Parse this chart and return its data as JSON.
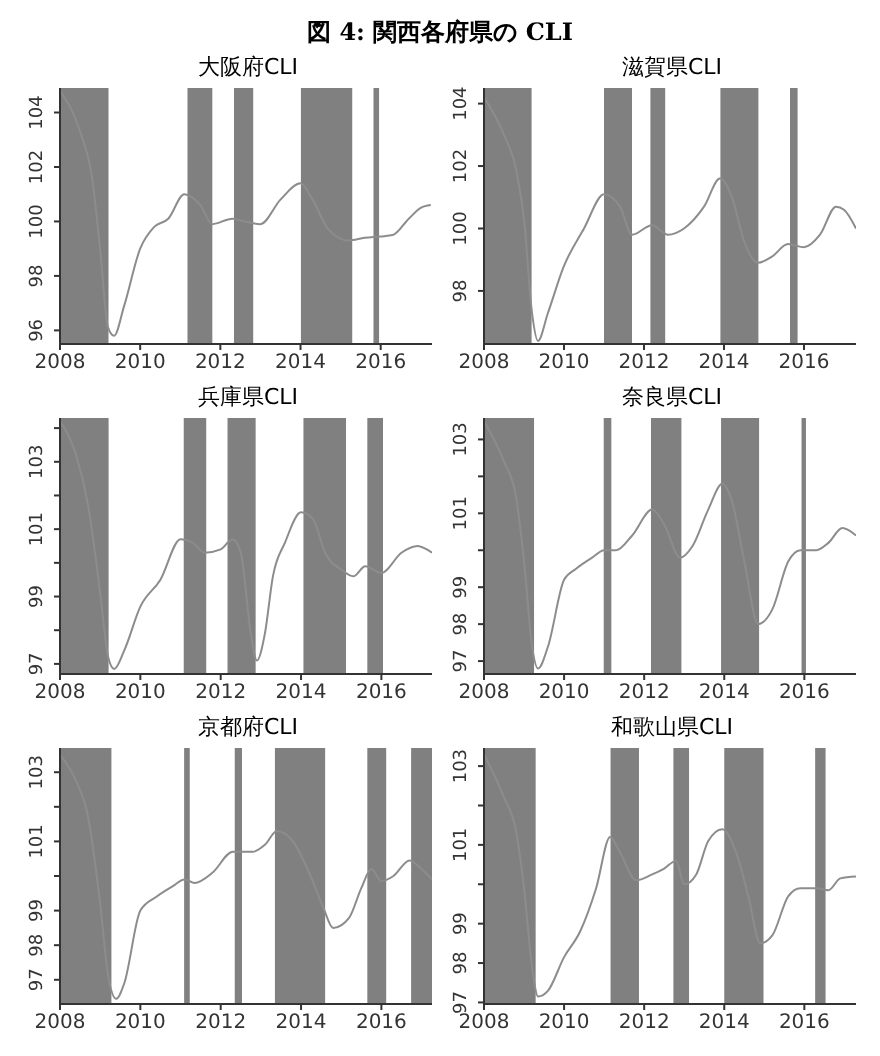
{
  "chart_data": [
    {
      "type": "line",
      "title": "大阪府CLI",
      "annotations": [
        "図 4: 関西各府県の CLI"
      ],
      "marker": "none",
      "color": "#8c8c8c",
      "x": [
        2008,
        2008.5,
        2008.8,
        2009.0,
        2009.2,
        2009.35,
        2009.6,
        2010,
        2010.35,
        2010.7,
        2011.1,
        2011.5,
        2011.8,
        2012.3,
        2012.6,
        2013,
        2013.5,
        2014,
        2014.3,
        2014.7,
        2015.2,
        2015.6,
        2016,
        2016.3,
        2016.7,
        2017,
        2017.25
      ],
      "values": [
        104.8,
        103.3,
        101.6,
        99.0,
        96.1,
        95.8,
        96.9,
        99.0,
        99.8,
        100.1,
        101.0,
        100.6,
        99.9,
        100.1,
        100.0,
        99.9,
        100.8,
        101.4,
        100.8,
        99.7,
        99.3,
        99.4,
        99.45,
        99.5,
        100.1,
        100.5,
        100.6
      ],
      "xlim": [
        2008,
        2017.28
      ],
      "xticks": [
        2008,
        2010,
        2012,
        2014,
        2016
      ],
      "ylim": [
        95.5,
        104.9
      ],
      "yticks": [
        96,
        98,
        100,
        102,
        104
      ],
      "bands": [
        {
          "axis": "x",
          "from": 2008,
          "to": 2009.21,
          "color": "#808080"
        },
        {
          "axis": "x",
          "from": 2011.18,
          "to": 2011.8,
          "color": "#808080"
        },
        {
          "axis": "x",
          "from": 2012.34,
          "to": 2012.82,
          "color": "#808080"
        },
        {
          "axis": "x",
          "from": 2014.01,
          "to": 2015.29,
          "color": "#808080"
        },
        {
          "axis": "x",
          "from": 2015.82,
          "to": 2015.96,
          "color": "#808080"
        }
      ]
    },
    {
      "type": "line",
      "title": "滋賀県CLI",
      "marker": "none",
      "color": "#8c8c8c",
      "x": [
        2008,
        2008.5,
        2008.8,
        2009.0,
        2009.2,
        2009.35,
        2009.6,
        2010,
        2010.5,
        2011,
        2011.4,
        2011.7,
        2012.2,
        2012.6,
        2013,
        2013.5,
        2013.9,
        2014.2,
        2014.5,
        2014.85,
        2015.2,
        2015.6,
        2016,
        2016.4,
        2016.8,
        2017,
        2017.3
      ],
      "values": [
        104.2,
        103.0,
        101.9,
        100.3,
        97.3,
        96.4,
        97.3,
        98.8,
        100.0,
        101.1,
        100.7,
        99.8,
        100.1,
        99.8,
        100.0,
        100.7,
        101.6,
        101.0,
        99.6,
        98.9,
        99.1,
        99.5,
        99.4,
        99.8,
        100.7,
        100.6,
        100.0
      ],
      "xlim": [
        2008,
        2017.3
      ],
      "xticks": [
        2008,
        2010,
        2012,
        2014,
        2016
      ],
      "ylim": [
        96.3,
        104.5
      ],
      "yticks": [
        98,
        100,
        102,
        104
      ],
      "bands": [
        {
          "axis": "x",
          "from": 2008,
          "to": 2009.19,
          "color": "#808080"
        },
        {
          "axis": "x",
          "from": 2011.0,
          "to": 2011.7,
          "color": "#808080"
        },
        {
          "axis": "x",
          "from": 2012.16,
          "to": 2012.53,
          "color": "#808080"
        },
        {
          "axis": "x",
          "from": 2013.91,
          "to": 2014.86,
          "color": "#808080"
        },
        {
          "axis": "x",
          "from": 2015.65,
          "to": 2015.84,
          "color": "#808080"
        }
      ]
    },
    {
      "type": "line",
      "title": "兵庫県CLI",
      "marker": "none",
      "color": "#8c8c8c",
      "x": [
        2008,
        2008.4,
        2008.7,
        2009.0,
        2009.2,
        2009.35,
        2009.6,
        2010,
        2010.5,
        2011,
        2011.3,
        2011.6,
        2012,
        2012.3,
        2012.5,
        2012.75,
        2012.9,
        2013.1,
        2013.3,
        2013.6,
        2014,
        2014.3,
        2014.6,
        2015,
        2015.3,
        2015.6,
        2016,
        2016.5,
        2016.9,
        2017.26
      ],
      "values": [
        104.2,
        103.2,
        101.7,
        99.1,
        97.2,
        96.85,
        97.4,
        98.7,
        99.5,
        100.7,
        100.6,
        100.3,
        100.4,
        100.7,
        100.3,
        97.9,
        97.1,
        97.9,
        99.6,
        100.6,
        101.5,
        101.3,
        100.3,
        99.8,
        99.6,
        99.9,
        99.7,
        100.3,
        100.5,
        100.3
      ],
      "xlim": [
        2008,
        2017.26
      ],
      "xticks": [
        2008,
        2010,
        2012,
        2014,
        2016
      ],
      "ylim": [
        96.7,
        104.3
      ],
      "yticks": [
        97,
        {
          "value": 98,
          "label": null
        },
        99,
        {
          "value": 100,
          "label": null
        },
        101,
        {
          "value": 102,
          "label": null
        },
        103,
        {
          "value": 104,
          "label": null
        }
      ],
      "bands": [
        {
          "axis": "x",
          "from": 2008,
          "to": 2009.21,
          "color": "#808080"
        },
        {
          "axis": "x",
          "from": 2011.08,
          "to": 2011.64,
          "color": "#808080"
        },
        {
          "axis": "x",
          "from": 2012.17,
          "to": 2012.87,
          "color": "#808080"
        },
        {
          "axis": "x",
          "from": 2014.06,
          "to": 2015.12,
          "color": "#808080"
        },
        {
          "axis": "x",
          "from": 2015.65,
          "to": 2016.04,
          "color": "#808080"
        }
      ]
    },
    {
      "type": "line",
      "title": "奈良県CLI",
      "marker": "none",
      "color": "#8c8c8c",
      "x": [
        2008,
        2008.5,
        2008.8,
        2009.0,
        2009.2,
        2009.35,
        2009.6,
        2010,
        2010.3,
        2010.7,
        2011,
        2011.3,
        2011.7,
        2012.2,
        2012.5,
        2012.9,
        2013.2,
        2013.6,
        2013.95,
        2014.2,
        2014.5,
        2014.85,
        2015.2,
        2015.6,
        2015.9,
        2016.3,
        2016.6,
        2016.95,
        2017.29
      ],
      "values": [
        103.5,
        102.4,
        101.45,
        99.7,
        97.4,
        96.8,
        97.4,
        99.2,
        99.5,
        99.8,
        100.0,
        100.0,
        100.4,
        101.1,
        100.7,
        99.8,
        100.1,
        101.1,
        101.8,
        101.3,
        99.7,
        98.0,
        98.4,
        99.7,
        100.0,
        100.0,
        100.2,
        100.6,
        100.4
      ],
      "xlim": [
        2008,
        2017.29
      ],
      "xticks": [
        2008,
        2010,
        2012,
        2014,
        2016
      ],
      "ylim": [
        96.65,
        103.58
      ],
      "yticks": [
        97,
        98,
        99,
        {
          "value": 100,
          "label": null
        },
        101,
        {
          "value": 102,
          "label": null
        },
        103
      ],
      "bands": [
        {
          "axis": "x",
          "from": 2008,
          "to": 2009.25,
          "color": "#808080"
        },
        {
          "axis": "x",
          "from": 2010.99,
          "to": 2011.18,
          "color": "#808080"
        },
        {
          "axis": "x",
          "from": 2012.17,
          "to": 2012.93,
          "color": "#808080"
        },
        {
          "axis": "x",
          "from": 2013.92,
          "to": 2014.87,
          "color": "#808080"
        },
        {
          "axis": "x",
          "from": 2015.93,
          "to": 2016.04,
          "color": "#808080"
        }
      ]
    },
    {
      "type": "line",
      "title": "京都府CLI",
      "marker": "none",
      "color": "#8c8c8c",
      "x": [
        2008,
        2008.4,
        2008.7,
        2009,
        2009.2,
        2009.4,
        2009.6,
        2010,
        2010.4,
        2010.8,
        2011.1,
        2011.35,
        2011.8,
        2012.3,
        2012.8,
        2013.1,
        2013.4,
        2013.8,
        2014.2,
        2014.55,
        2014.8,
        2015.2,
        2015.5,
        2015.75,
        2016,
        2016.3,
        2016.7,
        2017,
        2017.26
      ],
      "values": [
        103.5,
        102.75,
        101.7,
        99.2,
        97.1,
        96.45,
        96.9,
        99.0,
        99.4,
        99.7,
        99.9,
        99.8,
        100.1,
        100.7,
        100.7,
        100.9,
        101.3,
        101.0,
        100.1,
        99.1,
        98.5,
        98.8,
        99.65,
        100.2,
        99.85,
        100.0,
        100.45,
        100.2,
        99.9
      ],
      "xlim": [
        2008,
        2017.26
      ],
      "xticks": [
        2008,
        2010,
        2012,
        2014,
        2016
      ],
      "ylim": [
        96.3,
        103.7
      ],
      "yticks": [
        97,
        98,
        99,
        {
          "value": 100,
          "label": null
        },
        101,
        {
          "value": 102,
          "label": null
        },
        103
      ],
      "bands": [
        {
          "axis": "x",
          "from": 2008,
          "to": 2009.28,
          "color": "#808080"
        },
        {
          "axis": "x",
          "from": 2011.09,
          "to": 2011.23,
          "color": "#808080"
        },
        {
          "axis": "x",
          "from": 2012.35,
          "to": 2012.53,
          "color": "#808080"
        },
        {
          "axis": "x",
          "from": 2013.35,
          "to": 2014.6,
          "color": "#808080"
        },
        {
          "axis": "x",
          "from": 2015.65,
          "to": 2016.12,
          "color": "#808080"
        },
        {
          "axis": "x",
          "from": 2016.74,
          "to": 2017.26,
          "color": "#808080"
        }
      ]
    },
    {
      "type": "line",
      "title": "和歌山県CLI",
      "marker": "none",
      "color": "#8c8c8c",
      "x": [
        2008,
        2008.5,
        2008.8,
        2009,
        2009.2,
        2009.35,
        2009.6,
        2010,
        2010.4,
        2010.8,
        2011.15,
        2011.4,
        2011.8,
        2012.2,
        2012.5,
        2012.8,
        2013,
        2013.3,
        2013.6,
        2013.95,
        2014.3,
        2014.6,
        2014.9,
        2015.2,
        2015.6,
        2015.9,
        2016.3,
        2016.6,
        2016.9,
        2017.29
      ],
      "values": [
        103.3,
        102.2,
        101.35,
        99.9,
        97.9,
        97.15,
        97.3,
        98.15,
        98.8,
        99.9,
        101.2,
        100.8,
        100.1,
        100.25,
        100.4,
        100.6,
        100.0,
        100.25,
        101.1,
        101.4,
        100.8,
        99.7,
        98.5,
        98.7,
        99.7,
        99.9,
        99.9,
        99.85,
        100.15,
        100.2
      ],
      "xlim": [
        2008,
        2017.29
      ],
      "xticks": [
        2008,
        2010,
        2012,
        2014,
        2016
      ],
      "ylim": [
        96.96,
        103.46
      ],
      "yticks": [
        97,
        98,
        99,
        {
          "value": 100,
          "label": null
        },
        101,
        {
          "value": 102,
          "label": null
        },
        103
      ],
      "bands": [
        {
          "axis": "x",
          "from": 2008,
          "to": 2009.29,
          "color": "#808080"
        },
        {
          "axis": "x",
          "from": 2011.16,
          "to": 2011.87,
          "color": "#808080"
        },
        {
          "axis": "x",
          "from": 2012.73,
          "to": 2013.12,
          "color": "#808080"
        },
        {
          "axis": "x",
          "from": 2014.0,
          "to": 2014.98,
          "color": "#808080"
        },
        {
          "axis": "x",
          "from": 2016.27,
          "to": 2016.53,
          "color": "#808080"
        }
      ]
    }
  ]
}
